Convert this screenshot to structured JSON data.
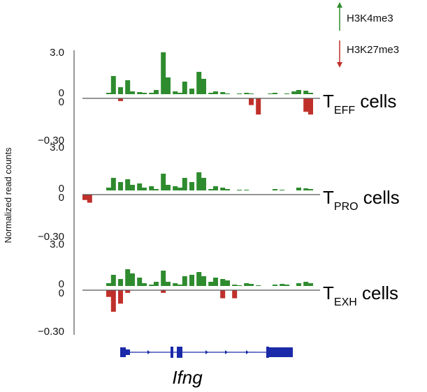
{
  "chart_data": {
    "type": "area",
    "ylabel": "Normalized read counts",
    "legend": {
      "placement": "top-right",
      "entries": [
        {
          "name": "H3K4me3",
          "direction": "up",
          "color": "#2e8b2e"
        },
        {
          "name": "H3K27me3",
          "direction": "down",
          "color": "#c0302b"
        }
      ]
    },
    "x_positions": [
      0,
      0.02,
      0.05,
      0.08,
      0.1,
      0.12,
      0.15,
      0.18,
      0.2,
      0.23,
      0.25,
      0.28,
      0.3,
      0.33,
      0.35,
      0.38,
      0.4,
      0.42,
      0.45,
      0.48,
      0.5,
      0.53,
      0.55,
      0.58,
      0.6,
      0.63,
      0.65,
      0.68,
      0.7,
      0.73,
      0.75,
      0.78,
      0.8,
      0.83,
      0.85,
      0.88,
      0.9,
      0.93,
      0.95,
      0.97
    ],
    "panels": [
      {
        "label_main": "T",
        "label_sub": "EFF",
        "label_suffix": " cells",
        "top": {
          "max_label": "3.0",
          "zero_label": "0",
          "ylim": [
            0,
            3.0
          ]
        },
        "bottom": {
          "zero_label": "0",
          "min_label": "−0.30",
          "ylim": [
            -0.3,
            0
          ]
        },
        "h3k4me3": [
          0,
          0,
          0,
          0,
          0.1,
          1.3,
          0.5,
          1.0,
          0.2,
          0.15,
          0.1,
          0.1,
          0.3,
          3.0,
          1.2,
          0.2,
          0.1,
          0.9,
          0.4,
          1.6,
          1.1,
          0.1,
          0.2,
          0.15,
          0.05,
          0,
          0.05,
          0.1,
          0.05,
          0,
          0,
          0.05,
          0.1,
          0,
          0.05,
          0.2,
          0.3,
          0.25,
          0.1,
          0
        ],
        "h3k27me3": [
          0,
          0,
          0,
          0,
          0,
          0,
          -0.02,
          0,
          0,
          0,
          0,
          0,
          0,
          0,
          0,
          0,
          0,
          0,
          0,
          0,
          0,
          0,
          0,
          0,
          0,
          0,
          0,
          0,
          -0.05,
          -0.12,
          0,
          0,
          0,
          0,
          0,
          0,
          0,
          -0.1,
          -0.12,
          0
        ]
      },
      {
        "label_main": "T",
        "label_sub": "PRO",
        "label_suffix": " cells",
        "top": {
          "max_label": "3.0",
          "zero_label": "0",
          "ylim": [
            0,
            3.0
          ]
        },
        "bottom": {
          "zero_label": "0",
          "min_label": "−0.30",
          "ylim": [
            -0.3,
            0
          ]
        },
        "h3k4me3": [
          0,
          0,
          0,
          0,
          0.2,
          0.9,
          0.6,
          0.8,
          0.4,
          0.5,
          0.2,
          0.3,
          0.1,
          1.2,
          0.4,
          0.3,
          0.2,
          0.9,
          0.6,
          1.3,
          0.9,
          0.1,
          0.3,
          0.2,
          0.1,
          0,
          0.05,
          0.05,
          0,
          0,
          0,
          0,
          0.1,
          0.05,
          0,
          0,
          0.2,
          0.15,
          0.1,
          0
        ],
        "h3k27me3": [
          -0.04,
          -0.06,
          0,
          0,
          0,
          0,
          0,
          0,
          0,
          0,
          0,
          0,
          0,
          0,
          0,
          0,
          0,
          0,
          0,
          0,
          0,
          0,
          0,
          0,
          0,
          0,
          0,
          0,
          0,
          0,
          0,
          0,
          0,
          0,
          0,
          0,
          0,
          0,
          0,
          0
        ]
      },
      {
        "label_main": "T",
        "label_sub": "EXH",
        "label_suffix": " cells",
        "top": {
          "max_label": "3.0",
          "zero_label": "0",
          "ylim": [
            0,
            3.0
          ]
        },
        "bottom": {
          "zero_label": "0",
          "min_label": "−0.30",
          "ylim": [
            -0.3,
            0
          ]
        },
        "h3k4me3": [
          0,
          0,
          0,
          0,
          0.2,
          0.8,
          0.5,
          1.2,
          0.9,
          0.6,
          0.2,
          0.1,
          0.3,
          1.1,
          0.3,
          0.2,
          0.1,
          0.7,
          0.8,
          1.0,
          0.7,
          0.3,
          0.6,
          0.5,
          0.4,
          0.1,
          0.05,
          0.2,
          0.15,
          0.05,
          0,
          0,
          0.1,
          0.15,
          0.1,
          0,
          0.2,
          0.3,
          0.2,
          0
        ],
        "h3k27me3": [
          0,
          0,
          0,
          0,
          -0.05,
          -0.16,
          -0.1,
          -0.02,
          0,
          0,
          0,
          0,
          0,
          -0.02,
          0,
          0,
          0,
          0,
          0,
          0,
          0,
          0,
          0,
          -0.06,
          0,
          -0.06,
          0,
          0,
          0,
          0,
          0,
          0,
          0,
          0,
          0,
          0,
          0,
          0,
          0,
          0
        ]
      }
    ],
    "gene": {
      "name": "Ifng",
      "color": "#1b2aa8"
    }
  }
}
